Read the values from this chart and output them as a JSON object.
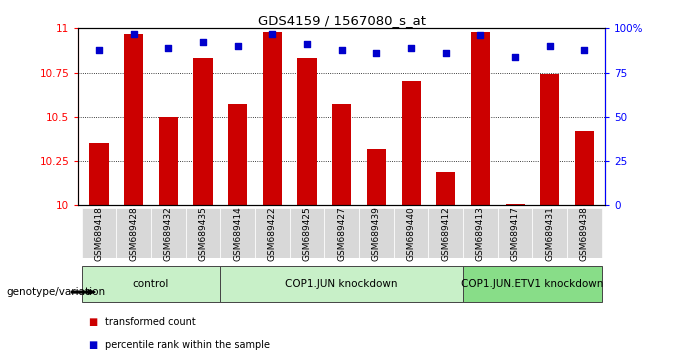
{
  "title": "GDS4159 / 1567080_s_at",
  "samples": [
    "GSM689418",
    "GSM689428",
    "GSM689432",
    "GSM689435",
    "GSM689414",
    "GSM689422",
    "GSM689425",
    "GSM689427",
    "GSM689439",
    "GSM689440",
    "GSM689412",
    "GSM689413",
    "GSM689417",
    "GSM689431",
    "GSM689438"
  ],
  "red_values": [
    10.35,
    10.97,
    10.5,
    10.83,
    10.57,
    10.98,
    10.83,
    10.57,
    10.32,
    10.7,
    10.19,
    10.98,
    10.01,
    10.74,
    10.42
  ],
  "blue_values": [
    88,
    97,
    89,
    92,
    90,
    97,
    91,
    88,
    86,
    89,
    86,
    96,
    84,
    90,
    88
  ],
  "ylim_left": [
    10,
    11
  ],
  "ylim_right": [
    0,
    100
  ],
  "yticks_left": [
    10,
    10.25,
    10.5,
    10.75,
    11
  ],
  "yticks_right": [
    0,
    25,
    50,
    75,
    100
  ],
  "ytick_labels_left": [
    "10",
    "10.25",
    "10.5",
    "10.75",
    "11"
  ],
  "ytick_labels_right": [
    "0",
    "25",
    "50",
    "75",
    "100%"
  ],
  "groups": [
    {
      "label": "control",
      "start": 0,
      "end": 4
    },
    {
      "label": "COP1.JUN knockdown",
      "start": 4,
      "end": 11
    },
    {
      "label": "COP1.JUN.ETV1 knockdown",
      "start": 11,
      "end": 15
    }
  ],
  "group_colors": [
    "#c8f0c8",
    "#c8f0c8",
    "#88dd88"
  ],
  "bar_color": "#cc0000",
  "dot_color": "#0000cc",
  "bar_width": 0.55,
  "genotype_label": "genotype/variation"
}
